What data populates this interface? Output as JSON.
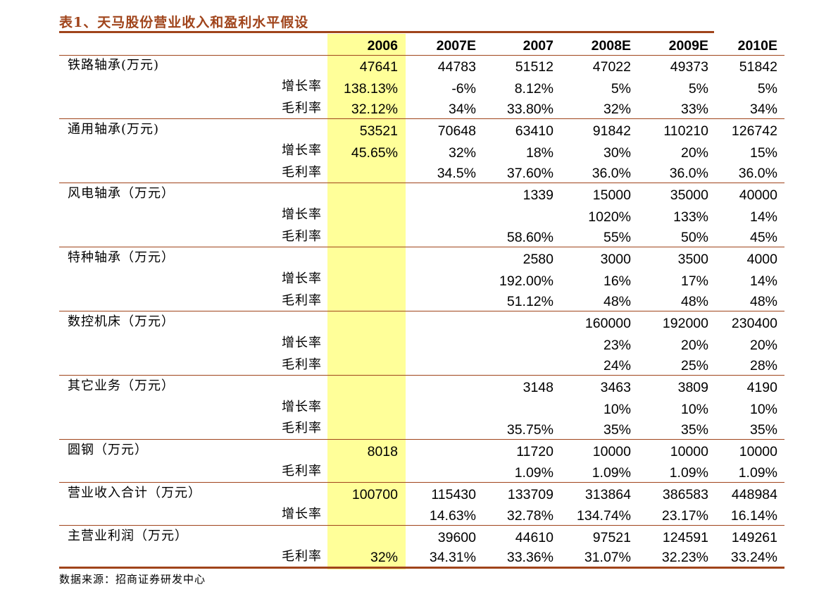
{
  "title": "表1、天马股份营业收入和盈利水平假设",
  "columns": [
    "2006",
    "2007E",
    "2007",
    "2008E",
    "2009E",
    "2010E"
  ],
  "groups": [
    {
      "label": "铁路轴承(万元)",
      "values": [
        "47641",
        "44783",
        "51512",
        "47022",
        "49373",
        "51842"
      ],
      "subrows": [
        {
          "label": "增长率",
          "values": [
            "138.13%",
            "-6%",
            "8.12%",
            "5%",
            "5%",
            "5%"
          ]
        },
        {
          "label": "毛利率",
          "values": [
            "32.12%",
            "34%",
            "33.80%",
            "32%",
            "33%",
            "34%"
          ]
        }
      ]
    },
    {
      "label": "通用轴承(万元)",
      "values": [
        "53521",
        "70648",
        "63410",
        "91842",
        "110210",
        "126742"
      ],
      "subrows": [
        {
          "label": "增长率",
          "values": [
            "45.65%",
            "32%",
            "18%",
            "30%",
            "20%",
            "15%"
          ]
        },
        {
          "label": "毛利率",
          "values": [
            "",
            "34.5%",
            "37.60%",
            "36.0%",
            "36.0%",
            "36.0%"
          ]
        }
      ]
    },
    {
      "label": "风电轴承（万元）",
      "values": [
        "",
        "",
        "1339",
        "15000",
        "35000",
        "40000"
      ],
      "subrows": [
        {
          "label": "增长率",
          "values": [
            "",
            "",
            "",
            "1020%",
            "133%",
            "14%"
          ]
        },
        {
          "label": "毛利率",
          "values": [
            "",
            "",
            "58.60%",
            "55%",
            "50%",
            "45%"
          ]
        }
      ]
    },
    {
      "label": "特种轴承（万元）",
      "values": [
        "",
        "",
        "2580",
        "3000",
        "3500",
        "4000"
      ],
      "subrows": [
        {
          "label": "增长率",
          "values": [
            "",
            "",
            "192.00%",
            "16%",
            "17%",
            "14%"
          ]
        },
        {
          "label": "毛利率",
          "values": [
            "",
            "",
            "51.12%",
            "48%",
            "48%",
            "48%"
          ]
        }
      ]
    },
    {
      "label": "数控机床（万元）",
      "values": [
        "",
        "",
        "",
        "160000",
        "192000",
        "230400"
      ],
      "subrows": [
        {
          "label": "增长率",
          "values": [
            "",
            "",
            "",
            "23%",
            "20%",
            "20%"
          ]
        },
        {
          "label": "毛利率",
          "values": [
            "",
            "",
            "",
            "24%",
            "25%",
            "28%"
          ]
        }
      ]
    },
    {
      "label": "其它业务（万元）",
      "values": [
        "",
        "",
        "3148",
        "3463",
        "3809",
        "4190"
      ],
      "subrows": [
        {
          "label": "增长率",
          "values": [
            "",
            "",
            "",
            "10%",
            "10%",
            "10%"
          ]
        },
        {
          "label": "毛利率",
          "values": [
            "",
            "",
            "35.75%",
            "35%",
            "35%",
            "35%"
          ]
        }
      ]
    },
    {
      "label": "圆钢（万元）",
      "values": [
        "8018",
        "",
        "11720",
        "10000",
        "10000",
        "10000"
      ],
      "subrows": [
        {
          "label": "毛利率",
          "values": [
            "",
            "",
            "1.09%",
            "1.09%",
            "1.09%",
            "1.09%"
          ]
        }
      ]
    },
    {
      "label": "营业收入合计（万元）",
      "values": [
        "100700",
        "115430",
        "133709",
        "313864",
        "386583",
        "448984"
      ],
      "subrows": [
        {
          "label": "增长率",
          "values": [
            "",
            "14.63%",
            "32.78%",
            "134.74%",
            "23.17%",
            "16.14%"
          ]
        }
      ]
    },
    {
      "label": "主营业利润（万元）",
      "values": [
        "",
        "39600",
        "44610",
        "97521",
        "124591",
        "149261"
      ],
      "subrows": [
        {
          "label": "毛利率",
          "values": [
            "32%",
            "34.31%",
            "33.36%",
            "31.07%",
            "32.23%",
            "33.24%"
          ]
        }
      ]
    }
  ],
  "source": "数据来源：招商证券研发中心",
  "colors": {
    "accent": "#a0441b",
    "highlight": "#ffff99"
  }
}
